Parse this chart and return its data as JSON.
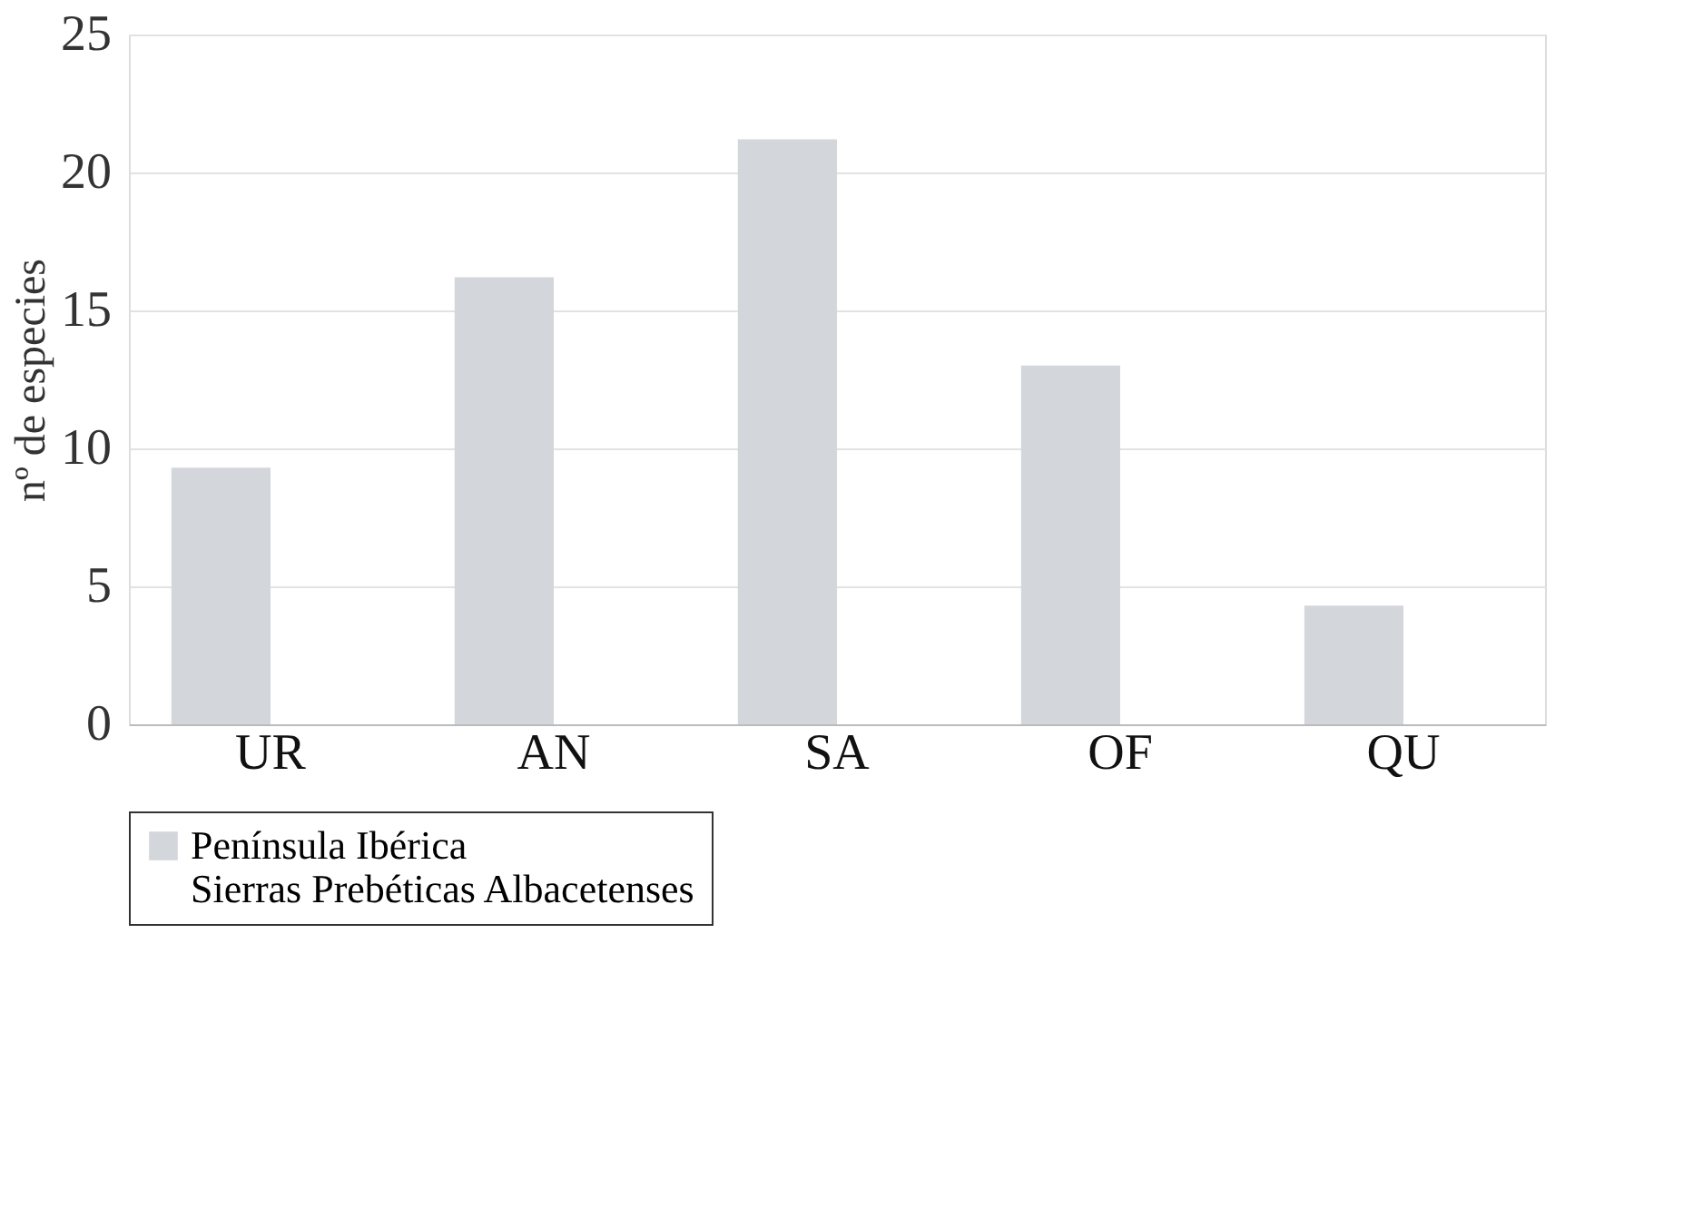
{
  "chart_data": {
    "type": "bar",
    "ylabel": "nº de especies",
    "categories": [
      "UR",
      "AN",
      "SA",
      "OF",
      "QU"
    ],
    "series": [
      {
        "name": "Península Ibérica",
        "color": "#d3d6db",
        "values": [
          9.3,
          16.2,
          21.2,
          13.0,
          4.3
        ]
      },
      {
        "name": "Sierras Prebéticas Albacetenses",
        "values": [
          null,
          null,
          null,
          null,
          null
        ]
      }
    ],
    "ylim": [
      0,
      25
    ],
    "yticks": [
      0,
      5,
      10,
      15,
      20,
      25
    ],
    "grid": "y",
    "legend": "bottom"
  }
}
